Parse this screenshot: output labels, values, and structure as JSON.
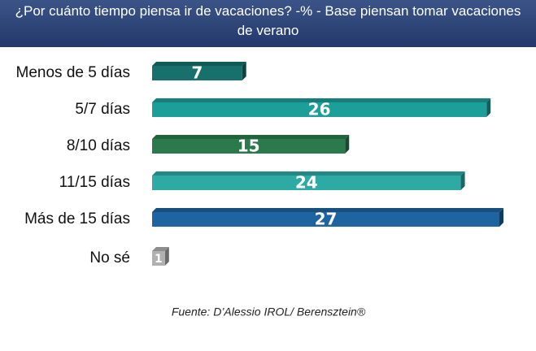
{
  "chart_data": {
    "type": "bar",
    "orientation": "horizontal",
    "title": "¿Por cuánto tiempo piensa ir de vacaciones? -% - Base piensan tomar vacaciones de verano",
    "categories": [
      "Menos de 5 días",
      "5/7 días",
      "8/10 días",
      "11/15 días",
      "Más de 15 días",
      "No sé"
    ],
    "values": [
      7,
      26,
      15,
      24,
      27,
      1
    ],
    "colors": [
      "#17706c",
      "#1c9e99",
      "#2a7a4c",
      "#2eaaa5",
      "#1d64a0",
      "#b0b0b0"
    ],
    "source": "Fuente: D’Alessio IROL/ Berensztein®"
  }
}
